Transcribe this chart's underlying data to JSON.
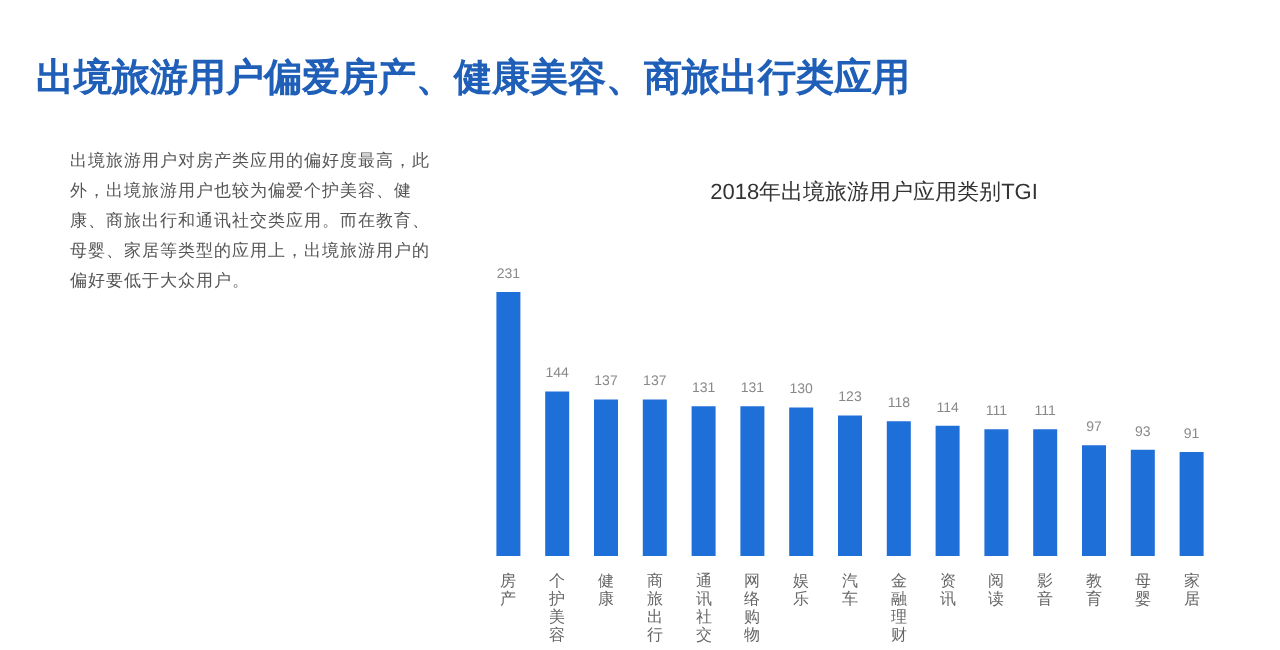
{
  "chart_data": {
    "type": "bar",
    "title": "2018年出境旅游用户应用类别TGI",
    "subtitle": "出境旅游用户偏爱房产、健康美容、商旅出行类应用",
    "annotations": [
      "出境旅游用户对房产类应用的偏好度最高，此外，出境旅游用户也较为偏爱个护美容、健康、商旅出行和通讯社交类应用。而在教育、母婴、家居等类型的应用上，出境旅游用户的偏好要低于大众用户。"
    ],
    "categories": [
      "房产",
      "个护美容",
      "健康",
      "商旅出行",
      "通讯社交",
      "网络购物",
      "娱乐",
      "汽车",
      "金融理财",
      "资讯",
      "阅读",
      "影音",
      "教育",
      "母婴",
      "家居"
    ],
    "values": [
      231,
      144,
      137,
      137,
      131,
      131,
      130,
      123,
      118,
      114,
      111,
      111,
      97,
      93,
      91
    ],
    "color": "#1f6fd8",
    "data_labels": true
  }
}
